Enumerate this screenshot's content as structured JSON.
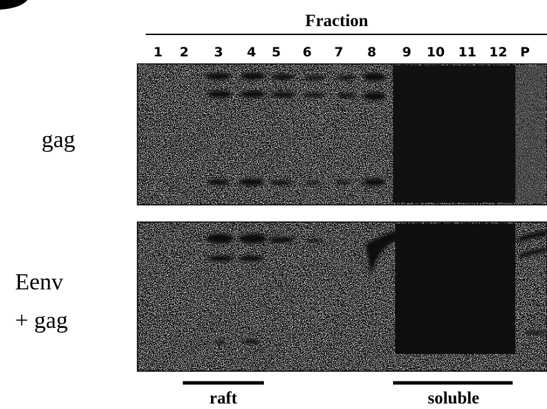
{
  "header": {
    "title": "Fraction"
  },
  "lanes": [
    "1",
    "2",
    "3",
    "4",
    "5",
    "6",
    "7",
    "8",
    "9",
    "10",
    "11",
    "12",
    "P"
  ],
  "rows": [
    {
      "label": "gag"
    },
    {
      "label_lines": [
        "Eenv",
        "+ gag"
      ]
    }
  ],
  "footer": {
    "left": "raft",
    "right": "soluble"
  }
}
